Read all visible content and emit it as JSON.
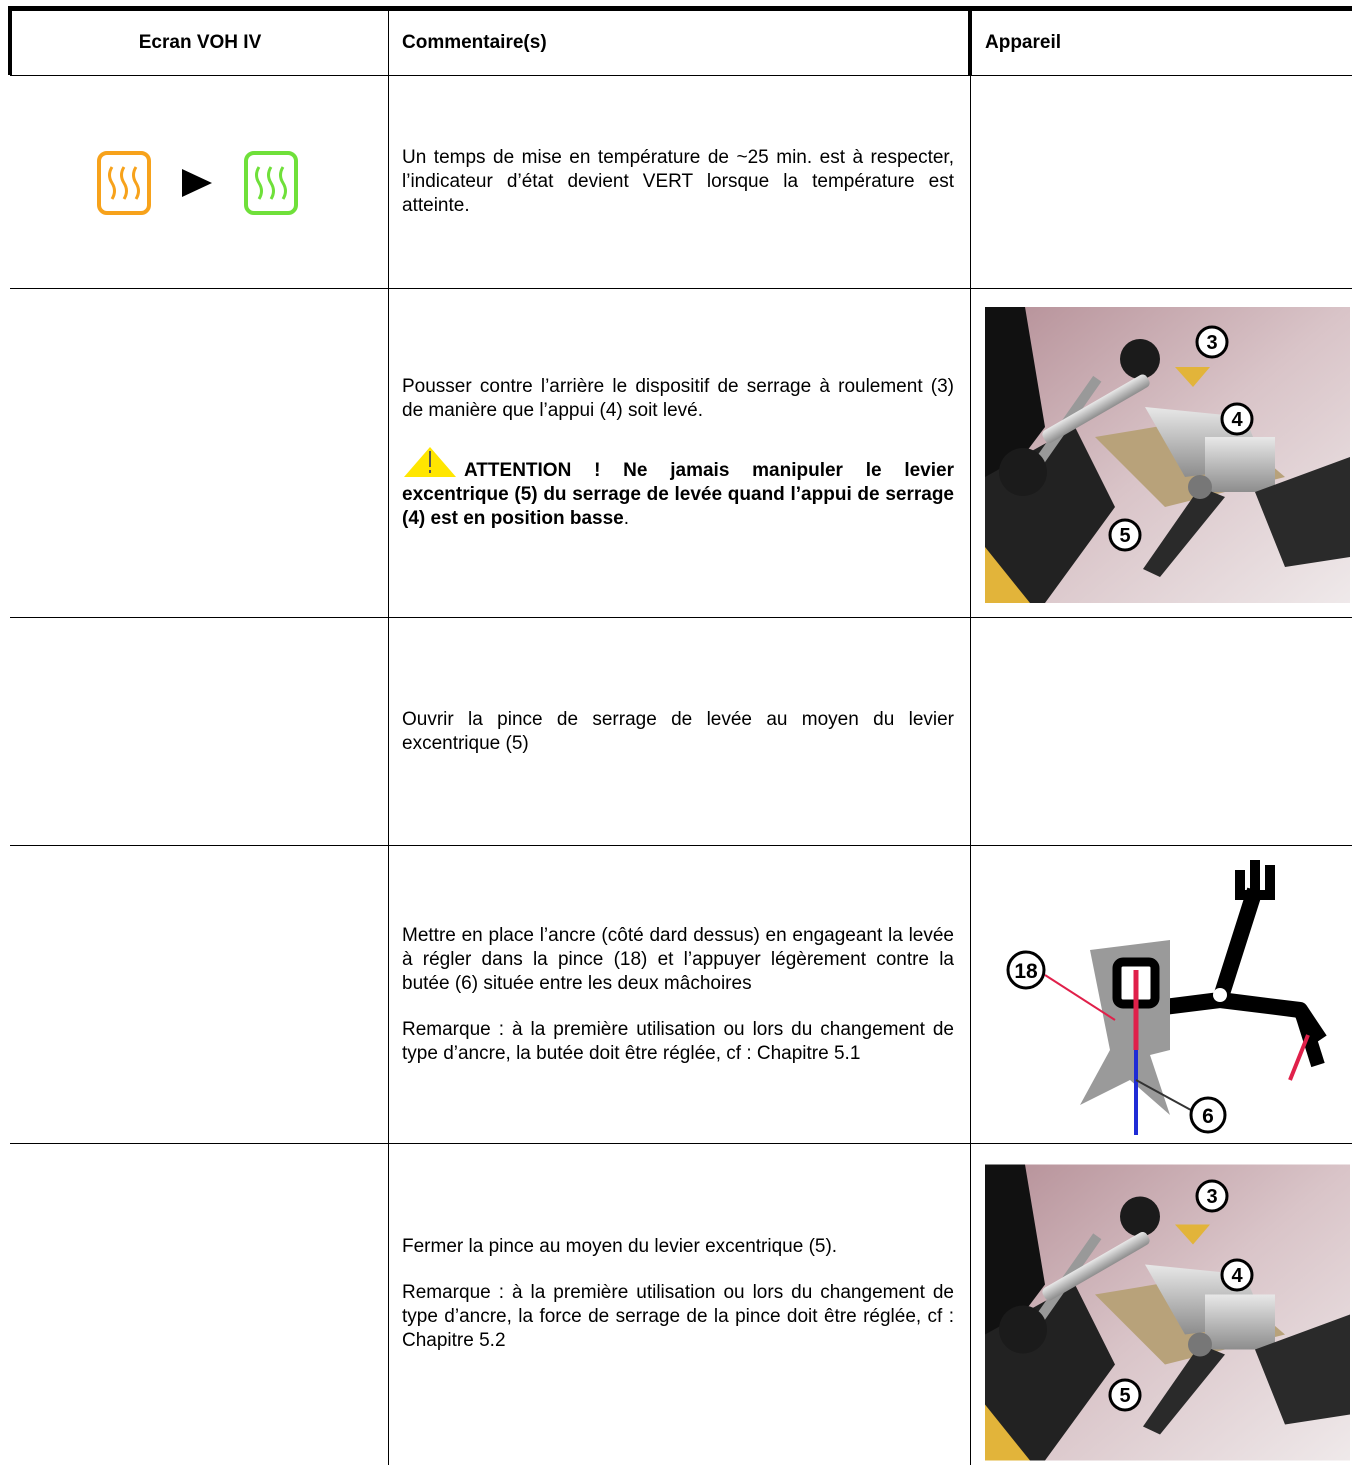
{
  "table": {
    "header": [
      "Ecran VOH IV",
      "Commentaire(s)",
      "Appareil"
    ],
    "rows": [
      {
        "paragraphs": [
          "Un temps de mise en température de ~25 min. est à respecter, l’indicateur d’état devient VERT  lorsque la température est atteinte."
        ]
      },
      {
        "paragraphs": [
          "Pousser contre l’arrière le dispositif de serrage à roulement (3) de manière que l’appui (4) soit levé.",
          {
            "strong": "ATTENTION ! Ne jamais manipuler le levier excentrique (5) du serrage de levée quand l’appui de serrage (4) est en position basse",
            "tail": "."
          }
        ],
        "image": {
          "callouts": [
            "3",
            "4",
            "5"
          ]
        }
      },
      {
        "paragraphs": [
          "Ouvrir la pince de serrage de levée au moyen du levier excentrique (5)"
        ]
      },
      {
        "paragraphs": [
          "Mettre en place l’ancre (côté dard dessus) en engageant la levée à régler dans la pince (18) et l’appuyer légèrement contre la butée (6) située entre les deux mâchoires",
          "Remarque : à la première utilisation ou lors du changement de type d’ancre, la butée doit être réglée, cf : Chapitre 5.1"
        ],
        "image": {
          "callouts": [
            "18",
            "6"
          ]
        }
      },
      {
        "paragraphs": [
          "Fermer la pince au moyen du levier excentrique (5).",
          "Remarque : à la première utilisation ou lors du changement de type d’ancre, la force de serrage de la pince doit être réglée, cf : Chapitre 5.2"
        ],
        "image": {
          "callouts": [
            "3",
            "4",
            "5"
          ]
        }
      }
    ]
  }
}
